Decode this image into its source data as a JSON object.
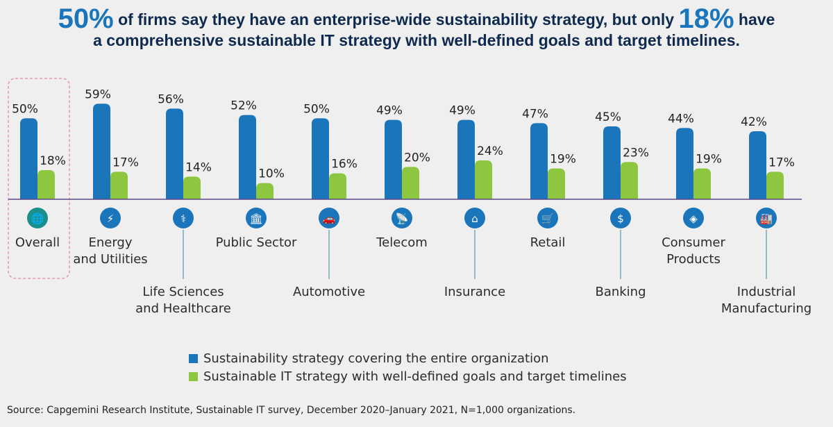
{
  "header": {
    "stat1": "50%",
    "text1": " of firms say they have an enterprise-wide sustainability strategy, but only ",
    "stat2": "18%",
    "text2": " have",
    "line2": "a comprehensive sustainable IT strategy with well-defined goals and target timelines."
  },
  "chart_data": {
    "type": "bar",
    "categories": [
      [
        "Overall"
      ],
      [
        "Energy",
        "and Utilities"
      ],
      [
        "Life Sciences",
        "and Healthcare"
      ],
      [
        "Public Sector"
      ],
      [
        "Automotive"
      ],
      [
        "Telecom"
      ],
      [
        "Insurance"
      ],
      [
        "Retail"
      ],
      [
        "Banking"
      ],
      [
        "Consumer",
        "Products"
      ],
      [
        "Industrial",
        "Manufacturing"
      ]
    ],
    "icons": [
      "globe-icon",
      "wind-turbine-icon",
      "dna-icon",
      "government-building-icon",
      "car-icon",
      "satellite-dish-icon",
      "hands-house-icon",
      "shopping-cart-icon",
      "bank-icon",
      "price-tag-icon",
      "factory-icon"
    ],
    "series": [
      {
        "name": "Sustainability strategy covering the entire organization",
        "color": "#1b75bb",
        "values": [
          50,
          59,
          56,
          52,
          50,
          49,
          49,
          47,
          45,
          44,
          42
        ]
      },
      {
        "name": "Sustainable IT strategy with well-defined goals and target timelines",
        "color": "#8dc63f",
        "values": [
          18,
          17,
          14,
          10,
          16,
          20,
          24,
          19,
          23,
          19,
          17
        ]
      }
    ],
    "value_suffix": "%",
    "ylim": [
      0,
      60
    ],
    "highlight_category": "Overall",
    "axis_color": "#5c4a8a",
    "icon_color": "#1b75bb",
    "highlight_icon_color": "#1a8f8c"
  },
  "legend": {
    "items": [
      {
        "label": "Sustainability strategy covering the entire organization",
        "color": "#1b75bb"
      },
      {
        "label": "Sustainable IT strategy with well-defined goals and target timelines",
        "color": "#8dc63f"
      }
    ]
  },
  "footer": {
    "source": "Source: Capgemini Research Institute, Sustainable IT survey, December 2020–January 2021, N=1,000 organizations."
  }
}
